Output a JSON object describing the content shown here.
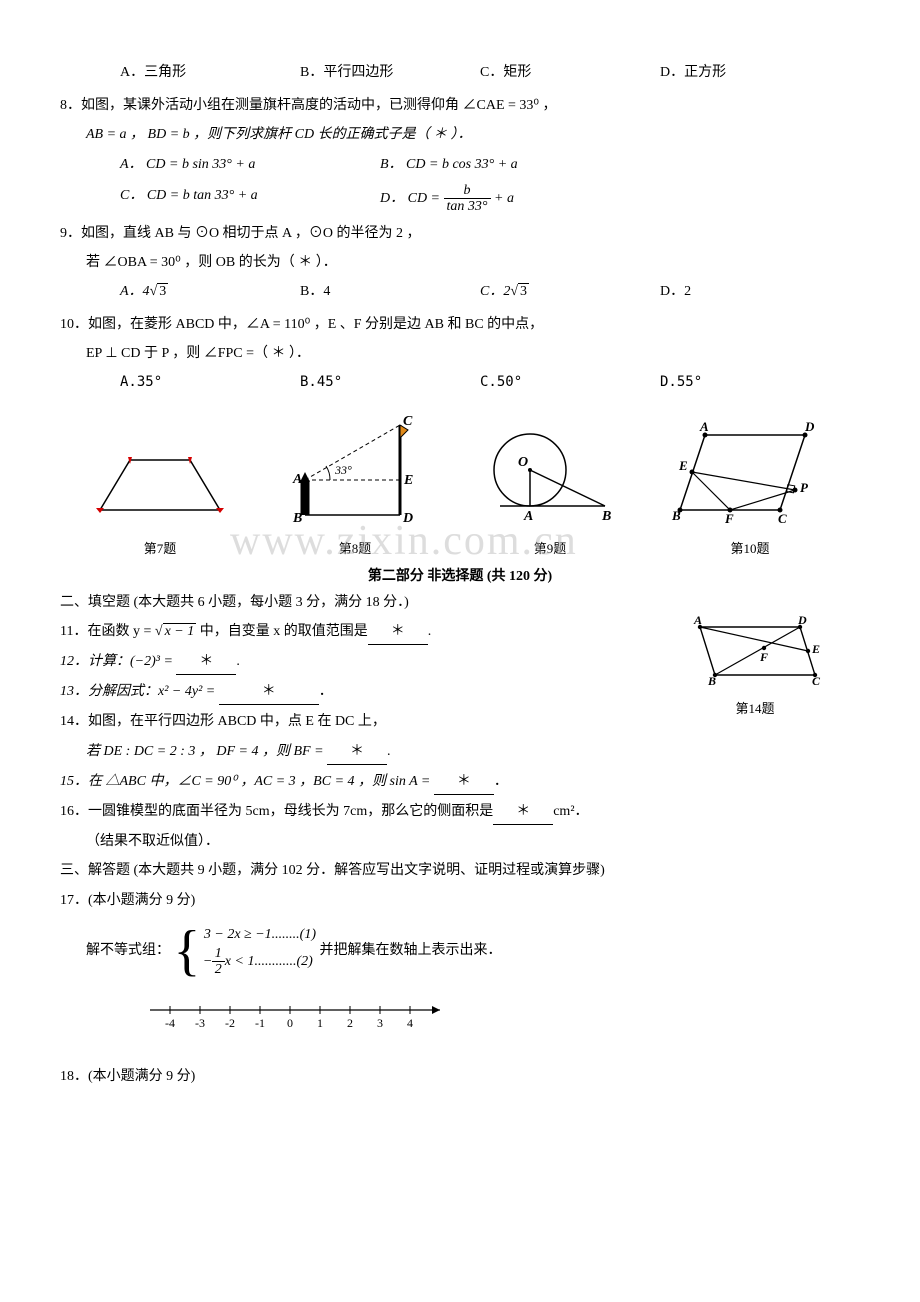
{
  "q7_options": {
    "a": "A．三角形",
    "b": "B．平行四边形",
    "c": "C．矩形",
    "d": "D．正方形"
  },
  "q8": {
    "stem1": "8．如图，某课外活动小组在测量旗杆高度的活动中，已测得仰角 ∠CAE = 33⁰ ，",
    "stem2": "AB = a ， BD = b ，则下列求旗杆 CD 长的正确式子是（ ＊ ）．",
    "optA": "A． CD = b sin 33° + a",
    "optB": "B． CD = b cos 33° + a",
    "optC": "C． CD = b tan 33° + a",
    "optD_prefix": "D． CD = ",
    "optD_num": "b",
    "optD_den": "tan 33°",
    "optD_suffix": " + a"
  },
  "q9": {
    "stem1": "9．如图，直线 AB 与 ⊙O 相切于点 A ，⊙O 的半径为 2 ，",
    "stem2": "若 ∠OBA = 30⁰ ，则 OB 的长为（ ＊ ）．",
    "optA_pre": "A．4",
    "optA_rad": "3",
    "optB": "B．4",
    "optC_pre": "C．2",
    "optC_rad": "3",
    "optD": "D．2"
  },
  "q10": {
    "stem1": "10．如图，在菱形 ABCD 中，∠A = 110⁰ ，E 、F 分别是边 AB 和 BC 的中点，",
    "stem2": "EP ⊥ CD 于 P ，则 ∠FPC =（ ＊ ）．",
    "optA": "A.35°",
    "optB": "B.45°",
    "optC": "C.50°",
    "optD": "D.55°"
  },
  "figures": {
    "cap7": "第7题",
    "cap8": "第8题",
    "cap9": "第9题",
    "cap10": "第10题",
    "cap14": "第14题",
    "labels8": {
      "A": "A",
      "B": "B",
      "C": "C",
      "D": "D",
      "E": "E",
      "angle": "33°"
    },
    "labels9": {
      "O": "O",
      "A": "A",
      "B": "B"
    },
    "labels10": {
      "A": "A",
      "B": "B",
      "C": "C",
      "D": "D",
      "E": "E",
      "F": "F",
      "P": "P"
    },
    "labels14": {
      "A": "A",
      "B": "B",
      "C": "C",
      "D": "D",
      "E": "E",
      "F": "F"
    }
  },
  "part2_title": "第二部分  非选择题 (共 120 分)",
  "section2": "二、填空题 (本大题共 6 小题，每小题 3 分，满分 18 分．)",
  "q11": {
    "pre": "11．在函数 y = ",
    "rad": "x − 1",
    "post": " 中，自变量 x 的取值范围是",
    "end": "."
  },
  "q12": {
    "pre": "12．计算：(−2)³ = ",
    "end": "."
  },
  "q13": {
    "pre": "13．分解因式：x² − 4y² = ",
    "end": "．"
  },
  "q14": {
    "stem1": "14．如图，在平行四边形 ABCD 中，点 E 在 DC 上，",
    "stem2_pre": "若 DE : DC = 2 : 3 ， DF = 4 ，则 BF = ",
    "stem2_end": "."
  },
  "q15": {
    "pre": "15．在 △ABC 中，∠C = 90⁰ ，AC = 3 ，BC = 4 ，则 sin A = ",
    "end": "．"
  },
  "q16": {
    "pre": "16．一圆锥模型的底面半径为 5cm，母线长为 7cm，那么它的侧面积是",
    "unit": "cm²．",
    "note": "（结果不取近似值）．"
  },
  "section3": "三、解答题 (本大题共 9 小题，满分 102 分．解答应写出文字说明、证明过程或演算步骤)",
  "q17": {
    "header": "17．(本小题满分 9 分)",
    "prefix": "解不等式组：",
    "line1": "3 − 2x ≥ −1........(1)",
    "line2_frac_num": "1",
    "line2_frac_den": "2",
    "line2_rest": "x < 1............(2)",
    "line2_sign": "−",
    "suffix": " 并把解集在数轴上表示出来．"
  },
  "numberline": {
    "ticks": [
      "-4",
      "-3",
      "-2",
      "-1",
      "0",
      "1",
      "2",
      "3",
      "4"
    ]
  },
  "q18": {
    "header": "18．(本小题满分 9 分)"
  },
  "watermark": "www.zixin.com.cn",
  "star": "＊",
  "colors": {
    "text": "#000000",
    "bg": "#ffffff",
    "watermark": "rgba(180,180,180,0.45)",
    "red": "#d40000",
    "orange": "#e08a1a"
  }
}
